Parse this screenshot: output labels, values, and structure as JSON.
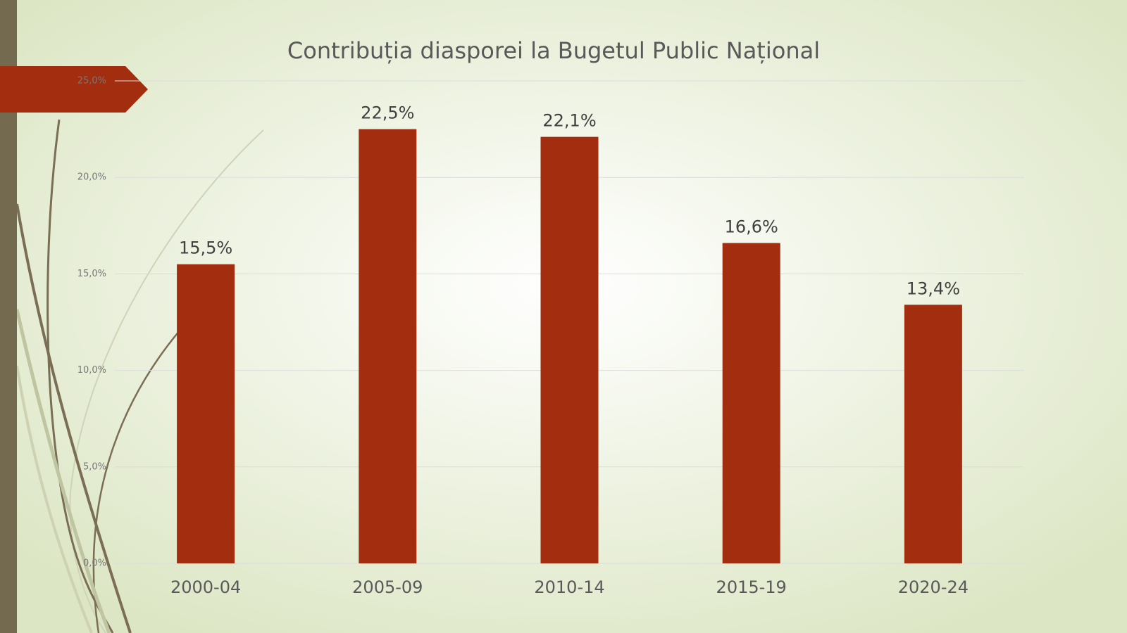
{
  "chart_data": {
    "type": "bar",
    "title": "Contribuția diasporei la Bugetul Public Național",
    "categories": [
      "2000-04",
      "2005-09",
      "2010-14",
      "2015-19",
      "2020-24"
    ],
    "values": [
      15.5,
      22.5,
      22.1,
      16.6,
      13.4
    ],
    "value_labels": [
      "15,5%",
      "22,5%",
      "22,1%",
      "16,6%",
      "13,4%"
    ],
    "color": "#a32e0f",
    "ylim": [
      0,
      25
    ],
    "yticks": [
      {
        "value": 0,
        "label": "0,0%"
      },
      {
        "value": 5,
        "label": "5,0%"
      },
      {
        "value": 10,
        "label": "10,0%"
      },
      {
        "value": 15,
        "label": "15,0%"
      },
      {
        "value": 20,
        "label": "20,0%"
      },
      {
        "value": 25,
        "label": "25,0%"
      }
    ],
    "grid": true
  }
}
